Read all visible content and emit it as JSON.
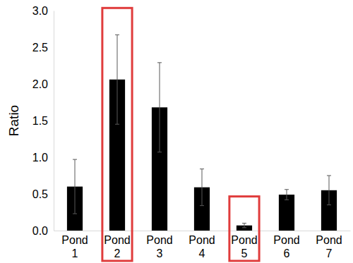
{
  "chart_data": {
    "type": "bar",
    "y_label": "Ratio",
    "categories": [
      "Pond 1",
      "Pond 2",
      "Pond 3",
      "Pond 4",
      "Pond 5",
      "Pond 6",
      "Pond 7"
    ],
    "values": [
      0.6,
      2.06,
      1.68,
      0.59,
      0.07,
      0.49,
      0.55
    ],
    "errors": [
      0.37,
      0.61,
      0.61,
      0.25,
      0.03,
      0.07,
      0.2
    ],
    "color": "#000000",
    "ylim": [
      0,
      3
    ],
    "yticks": [
      {
        "value": 0,
        "label": "0.0"
      },
      {
        "value": 0.5,
        "label": "0.5"
      },
      {
        "value": 1,
        "label": "1.0"
      },
      {
        "value": 1.5,
        "label": "1.5"
      },
      {
        "value": 2,
        "label": "2.0"
      },
      {
        "value": 2.5,
        "label": "2.5"
      },
      {
        "value": 3,
        "label": "3.0"
      }
    ],
    "grid": false
  }
}
